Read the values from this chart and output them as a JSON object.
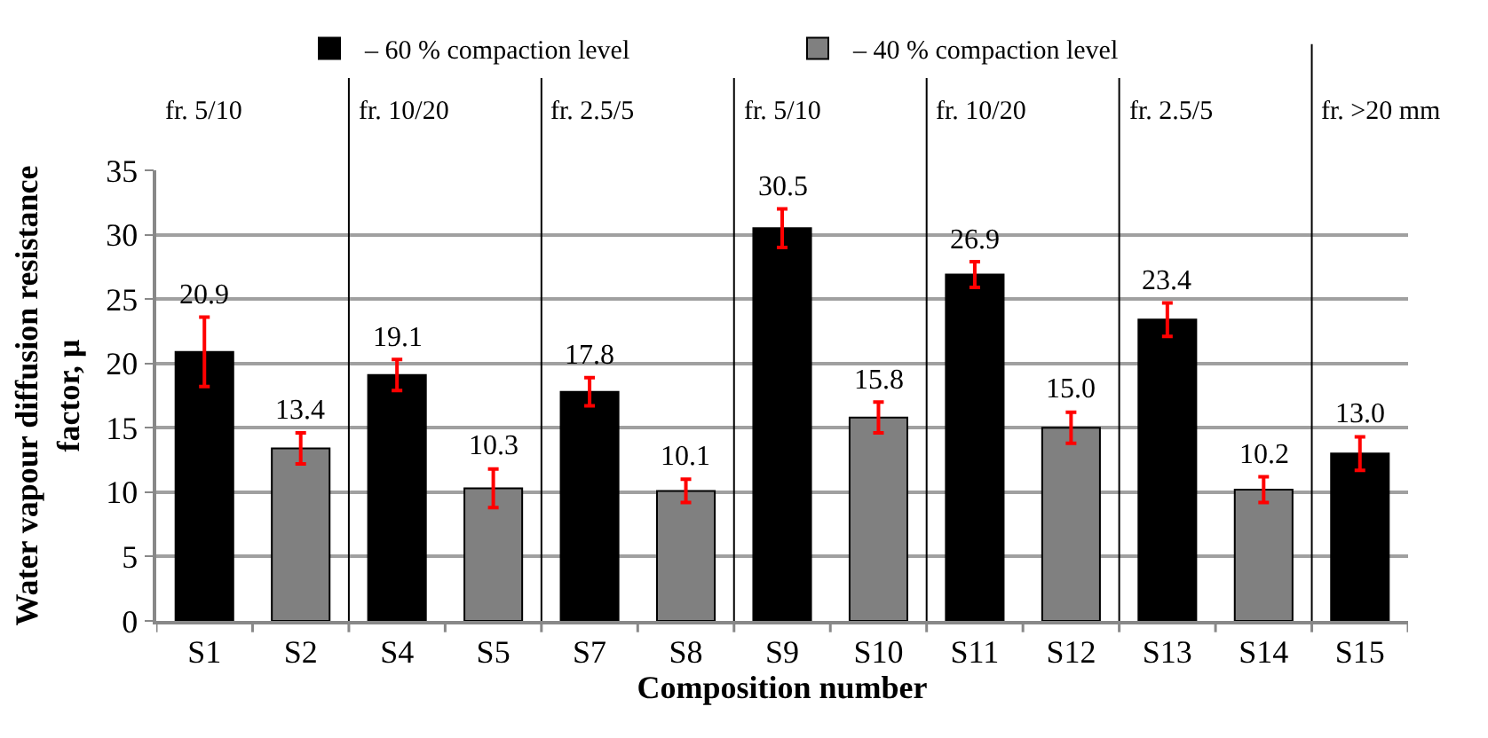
{
  "chart_data": {
    "type": "bar",
    "xlabel": "Composition number",
    "ylabel": "Water vapour diffusion resistance factor, μ",
    "categories": [
      "S1",
      "S2",
      "S4",
      "S5",
      "S7",
      "S8",
      "S9",
      "S10",
      "S11",
      "S12",
      "S13",
      "S14",
      "S15"
    ],
    "series": [
      {
        "name": "– 60 % compaction level",
        "color": "#000000",
        "values": [
          20.9,
          null,
          19.1,
          null,
          17.8,
          null,
          30.5,
          null,
          26.9,
          null,
          23.4,
          null,
          13.0
        ],
        "value_labels": [
          "20.9",
          null,
          "19.1",
          null,
          "17.8",
          null,
          "30.5",
          null,
          "26.9",
          null,
          "23.4",
          null,
          "13.0"
        ],
        "errors": [
          2.7,
          null,
          1.2,
          null,
          1.1,
          null,
          1.5,
          null,
          1.0,
          null,
          1.3,
          null,
          1.3
        ]
      },
      {
        "name": "– 40 % compaction level",
        "color": "#808080",
        "values": [
          null,
          13.4,
          null,
          10.3,
          null,
          10.1,
          null,
          15.8,
          null,
          15.0,
          null,
          10.2,
          null
        ],
        "value_labels": [
          null,
          "13.4",
          null,
          "10.3",
          null,
          "10.1",
          null,
          "15.8",
          null,
          "15.0",
          null,
          "10.2",
          null
        ],
        "errors": [
          null,
          1.2,
          null,
          1.5,
          null,
          0.9,
          null,
          1.2,
          null,
          1.2,
          null,
          1.0,
          null
        ]
      }
    ],
    "annotations": [
      "fr. 5/10",
      "fr. 10/20",
      "fr. 2.5/5",
      "fr. 5/10",
      "fr. 10/20",
      "fr. 2.5/5",
      "fr. >20 mm"
    ],
    "ylim": [
      0,
      35
    ],
    "yticks": [
      0,
      5,
      10,
      15,
      20,
      25,
      30,
      35
    ],
    "grid": "y",
    "legend": "top"
  }
}
